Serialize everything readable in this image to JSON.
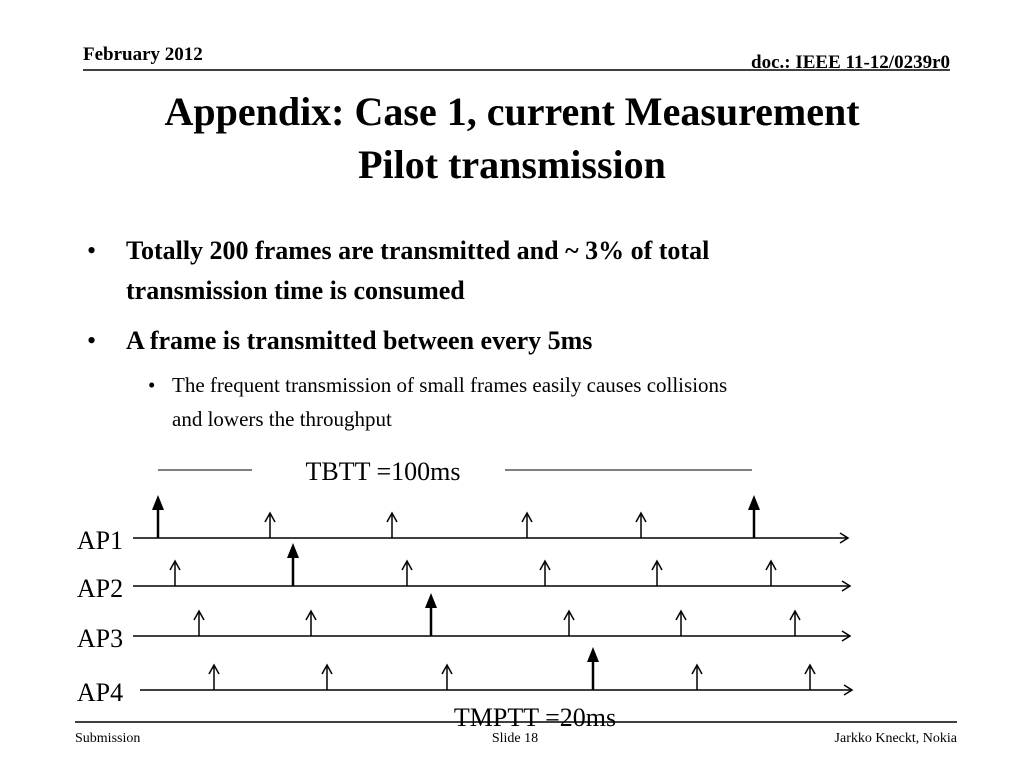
{
  "header": {
    "date": "February 2012",
    "doc": "doc.: IEEE 11-12/0239r0"
  },
  "title": {
    "line1": "Appendix: Case 1, current Measurement",
    "line2": "Pilot transmission"
  },
  "bullets": [
    {
      "lines": [
        "Totally 200 frames are transmitted and ~ 3% of total",
        "transmission time is consumed"
      ]
    },
    {
      "lines": [
        "A frame is transmitted between every 5ms"
      ]
    }
  ],
  "sub_bullets": [
    {
      "lines": [
        "The frequent transmission of small frames easily causes collisions",
        "and lowers the throughput"
      ]
    }
  ],
  "diagram": {
    "tbtt_label": "TBTT =100ms",
    "tmptt_label": "TMPTT =20ms",
    "rows": [
      "AP1",
      "AP2",
      "AP3",
      "AP4"
    ]
  },
  "footer": {
    "left": "Submission",
    "center": "Slide 18",
    "right": "Jarkko Kneckt, Nokia"
  }
}
